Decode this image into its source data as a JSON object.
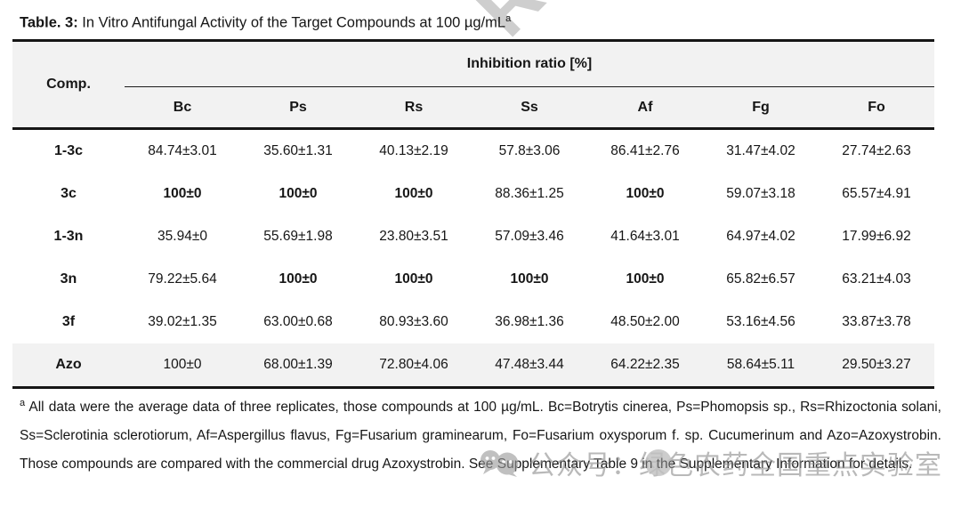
{
  "page": {
    "title_label": "Table. 3:",
    "title_text": " In Vitro Antifungal Activity of the Target Compounds at 100 µg/mL",
    "title_superscript": "a"
  },
  "table": {
    "comp_header": "Comp.",
    "group_header": "Inhibition ratio [%]",
    "columns": [
      "Bc",
      "Ps",
      "Rs",
      "Ss",
      "Af",
      "Fg",
      "Fo"
    ],
    "rows": [
      {
        "comp": "1-3c",
        "shaded": false,
        "bold_cols": [],
        "values": [
          "84.74±3.01",
          "35.60±1.31",
          "40.13±2.19",
          "57.8±3.06",
          "86.41±2.76",
          "31.47±4.02",
          "27.74±2.63"
        ]
      },
      {
        "comp": "3c",
        "shaded": false,
        "bold_cols": [
          0,
          1,
          2,
          4
        ],
        "values": [
          "100±0",
          "100±0",
          "100±0",
          "88.36±1.25",
          "100±0",
          "59.07±3.18",
          "65.57±4.91"
        ]
      },
      {
        "comp": "1-3n",
        "shaded": false,
        "bold_cols": [],
        "values": [
          "35.94±0",
          "55.69±1.98",
          "23.80±3.51",
          "57.09±3.46",
          "41.64±3.01",
          "64.97±4.02",
          "17.99±6.92"
        ]
      },
      {
        "comp": "3n",
        "shaded": false,
        "bold_cols": [
          1,
          2,
          3,
          4
        ],
        "values": [
          "79.22±5.64",
          "100±0",
          "100±0",
          "100±0",
          "100±0",
          "65.82±6.57",
          "63.21±4.03"
        ]
      },
      {
        "comp": "3f",
        "shaded": false,
        "bold_cols": [],
        "values": [
          "39.02±1.35",
          "63.00±0.68",
          "80.93±3.60",
          "36.98±1.36",
          "48.50±2.00",
          "53.16±4.56",
          "33.87±3.78"
        ]
      },
      {
        "comp": "Azo",
        "shaded": true,
        "bold_cols": [],
        "values": [
          "100±0",
          "68.00±1.39",
          "72.80±4.06",
          "47.48±3.44",
          "64.22±2.35",
          "58.64±5.11",
          "29.50±3.27"
        ]
      }
    ]
  },
  "footnote": {
    "marker": "a",
    "text": "All data were the average data of three replicates, those compounds at 100 µg/mL. Bc=Botrytis cinerea, Ps=Phomopsis sp., Rs=Rhizoctonia solani, Ss=Sclerotinia sclerotiorum, Af=Aspergillus flavus, Fg=Fusarium graminearum, Fo=Fusarium oxysporum f. sp. Cucumerinum and Azo=Azoxystrobin. Those compounds are compared with the commercial drug Azoxystrobin. See Supplementary Table 9 in the Supplementary Information for details."
  },
  "watermarks": {
    "top_diagonal_text": "RE",
    "bottom_account_text": "公众号：绿色农药全国重点实验室",
    "wechat_icon": "wechat-chat-bubbles-icon"
  },
  "colors": {
    "header_bg": "#f2f2f2",
    "shaded_row_bg": "#f2f2f2",
    "rule": "#161616",
    "watermark_gray": "#9a9a9a"
  }
}
